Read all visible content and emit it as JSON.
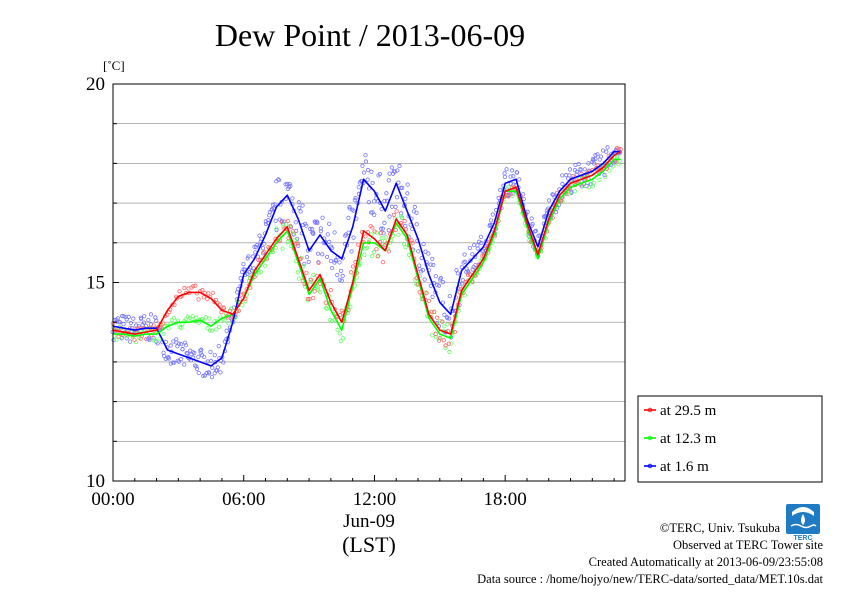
{
  "chart_data": {
    "type": "line",
    "title": "Dew Point / 2013-06-09",
    "ylabel": "[˚C]",
    "xlabel": "(LST)",
    "date_label": "Jun-09",
    "ylim": [
      10,
      20
    ],
    "xlim": [
      0,
      23.5
    ],
    "y_ticks": [
      10,
      15,
      20
    ],
    "y_minor_ticks": [
      11,
      12,
      13,
      14,
      16,
      17,
      18,
      19
    ],
    "x_ticks": [
      {
        "value": 0,
        "label": "00:00"
      },
      {
        "value": 6,
        "label": "06:00"
      },
      {
        "value": 12,
        "label": "12:00"
      },
      {
        "value": 18,
        "label": "18:00"
      }
    ],
    "grid": true,
    "legend_position": "bottom-right outside",
    "series": [
      {
        "name": "at 29.5 m",
        "color": "#ff0000",
        "scatter_color": "#ff6a6a",
        "x": [
          0,
          0.5,
          1,
          1.5,
          2,
          2.5,
          3,
          3.5,
          4,
          4.5,
          5,
          5.5,
          6,
          6.5,
          7,
          7.5,
          8,
          8.5,
          9,
          9.5,
          10,
          10.5,
          11,
          11.5,
          12,
          12.5,
          13,
          13.5,
          14,
          14.5,
          15,
          15.5,
          16,
          16.5,
          17,
          17.5,
          18,
          18.5,
          19,
          19.5,
          20,
          20.5,
          21,
          21.5,
          22,
          22.5,
          23,
          23.3
        ],
        "values": [
          13.8,
          13.75,
          13.7,
          13.75,
          13.8,
          14.3,
          14.65,
          14.75,
          14.75,
          14.6,
          14.3,
          14.2,
          14.6,
          15.3,
          15.7,
          16.1,
          16.4,
          15.6,
          14.8,
          15.2,
          14.5,
          14.0,
          15.0,
          16.3,
          16.1,
          15.8,
          16.6,
          16.2,
          15.2,
          14.2,
          13.8,
          13.7,
          14.8,
          15.2,
          15.6,
          16.3,
          17.3,
          17.4,
          16.5,
          15.7,
          16.6,
          17.2,
          17.5,
          17.6,
          17.7,
          17.9,
          18.2,
          18.3
        ]
      },
      {
        "name": "at 12.3 m",
        "color": "#00ff00",
        "scatter_color": "#66ff66",
        "x": [
          0,
          0.5,
          1,
          1.5,
          2,
          2.5,
          3,
          3.5,
          4,
          4.5,
          5,
          5.5,
          6,
          6.5,
          7,
          7.5,
          8,
          8.5,
          9,
          9.5,
          10,
          10.5,
          11,
          11.5,
          12,
          12.5,
          13,
          13.5,
          14,
          14.5,
          15,
          15.5,
          16,
          16.5,
          17,
          17.5,
          18,
          18.5,
          19,
          19.5,
          20,
          20.5,
          21,
          21.5,
          22,
          22.5,
          23,
          23.3
        ],
        "values": [
          13.7,
          13.7,
          13.65,
          13.7,
          13.7,
          13.9,
          14.0,
          14.0,
          14.05,
          13.9,
          14.1,
          14.2,
          14.6,
          15.2,
          15.6,
          16.0,
          16.3,
          15.5,
          14.7,
          15.1,
          14.3,
          13.8,
          14.9,
          16.0,
          16.0,
          15.8,
          16.5,
          16.1,
          15.1,
          14.1,
          13.7,
          13.6,
          14.7,
          15.1,
          15.5,
          16.2,
          17.3,
          17.3,
          16.4,
          15.6,
          16.5,
          17.1,
          17.4,
          17.5,
          17.6,
          17.8,
          18.1,
          18.1
        ]
      },
      {
        "name": "at 1.6 m",
        "color": "#0000ff",
        "scatter_color": "#7777ff",
        "x": [
          0,
          0.5,
          1,
          1.5,
          2,
          2.5,
          3,
          3.5,
          4,
          4.5,
          5,
          5.5,
          6,
          6.5,
          7,
          7.5,
          8,
          8.5,
          9,
          9.5,
          10,
          10.5,
          11,
          11.5,
          12,
          12.5,
          13,
          13.5,
          14,
          14.5,
          15,
          15.5,
          16,
          16.5,
          17,
          17.5,
          18,
          18.5,
          19,
          19.5,
          20,
          20.5,
          21,
          21.5,
          22,
          22.5,
          23,
          23.3
        ],
        "values": [
          13.9,
          13.85,
          13.8,
          13.85,
          13.85,
          13.3,
          13.2,
          13.1,
          13.0,
          12.9,
          13.1,
          14.0,
          15.2,
          15.6,
          16.2,
          16.9,
          17.2,
          16.6,
          15.8,
          16.2,
          15.8,
          15.6,
          16.4,
          17.6,
          17.3,
          16.8,
          17.5,
          16.8,
          16.1,
          15.2,
          14.5,
          14.2,
          15.3,
          15.6,
          15.9,
          16.5,
          17.5,
          17.6,
          16.6,
          15.9,
          16.8,
          17.3,
          17.6,
          17.7,
          17.8,
          18.0,
          18.3,
          18.3
        ]
      }
    ]
  },
  "credits": [
    "©TERC, Univ. Tsukuba",
    "Observed at TERC Tower site",
    "Created Automatically at 2013-06-09/23:55:08",
    "Data source : /home/hojyo/new/TERC-data/sorted_data/MET.10s.dat"
  ],
  "logo_text": "TERC"
}
